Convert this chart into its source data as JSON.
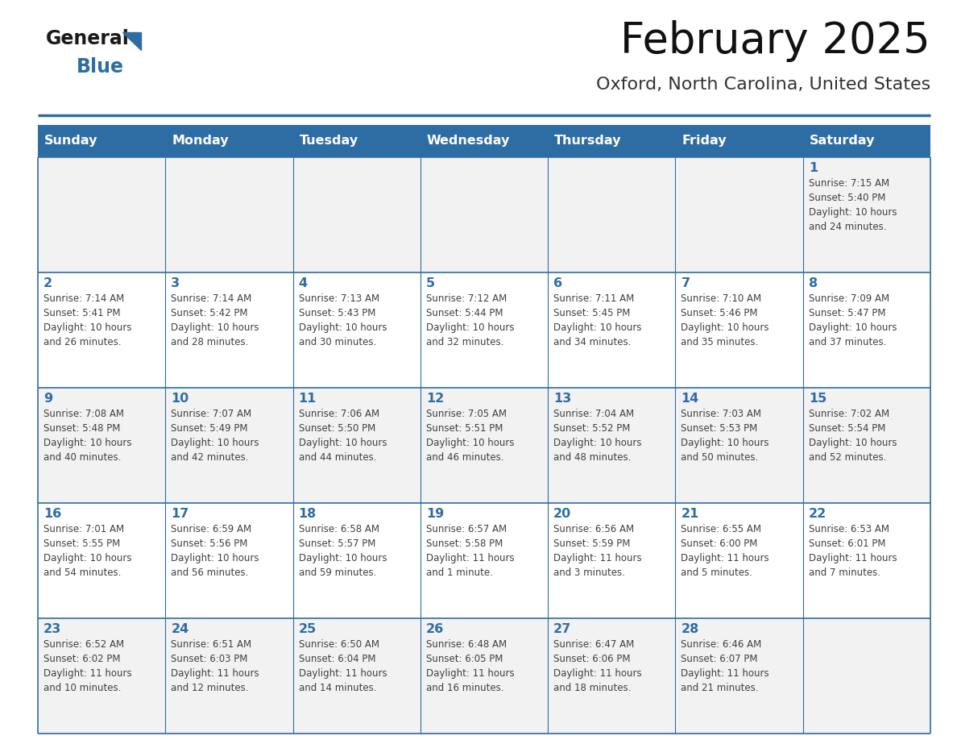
{
  "title": "February 2025",
  "subtitle": "Oxford, North Carolina, United States",
  "days_of_week": [
    "Sunday",
    "Monday",
    "Tuesday",
    "Wednesday",
    "Thursday",
    "Friday",
    "Saturday"
  ],
  "header_bg": "#2E6DA4",
  "header_text": "#FFFFFF",
  "cell_bg_even": "#F2F2F2",
  "cell_bg_odd": "#FFFFFF",
  "border_color": "#2E6DA4",
  "day_number_color": "#2E6DA4",
  "cell_text_color": "#404040",
  "logo_general_color": "#1a1a1a",
  "logo_blue_color": "#2E6DA4",
  "title_color": "#111111",
  "subtitle_color": "#333333",
  "weeks": [
    [
      {
        "day": null,
        "info": null
      },
      {
        "day": null,
        "info": null
      },
      {
        "day": null,
        "info": null
      },
      {
        "day": null,
        "info": null
      },
      {
        "day": null,
        "info": null
      },
      {
        "day": null,
        "info": null
      },
      {
        "day": 1,
        "info": "Sunrise: 7:15 AM\nSunset: 5:40 PM\nDaylight: 10 hours\nand 24 minutes."
      }
    ],
    [
      {
        "day": 2,
        "info": "Sunrise: 7:14 AM\nSunset: 5:41 PM\nDaylight: 10 hours\nand 26 minutes."
      },
      {
        "day": 3,
        "info": "Sunrise: 7:14 AM\nSunset: 5:42 PM\nDaylight: 10 hours\nand 28 minutes."
      },
      {
        "day": 4,
        "info": "Sunrise: 7:13 AM\nSunset: 5:43 PM\nDaylight: 10 hours\nand 30 minutes."
      },
      {
        "day": 5,
        "info": "Sunrise: 7:12 AM\nSunset: 5:44 PM\nDaylight: 10 hours\nand 32 minutes."
      },
      {
        "day": 6,
        "info": "Sunrise: 7:11 AM\nSunset: 5:45 PM\nDaylight: 10 hours\nand 34 minutes."
      },
      {
        "day": 7,
        "info": "Sunrise: 7:10 AM\nSunset: 5:46 PM\nDaylight: 10 hours\nand 35 minutes."
      },
      {
        "day": 8,
        "info": "Sunrise: 7:09 AM\nSunset: 5:47 PM\nDaylight: 10 hours\nand 37 minutes."
      }
    ],
    [
      {
        "day": 9,
        "info": "Sunrise: 7:08 AM\nSunset: 5:48 PM\nDaylight: 10 hours\nand 40 minutes."
      },
      {
        "day": 10,
        "info": "Sunrise: 7:07 AM\nSunset: 5:49 PM\nDaylight: 10 hours\nand 42 minutes."
      },
      {
        "day": 11,
        "info": "Sunrise: 7:06 AM\nSunset: 5:50 PM\nDaylight: 10 hours\nand 44 minutes."
      },
      {
        "day": 12,
        "info": "Sunrise: 7:05 AM\nSunset: 5:51 PM\nDaylight: 10 hours\nand 46 minutes."
      },
      {
        "day": 13,
        "info": "Sunrise: 7:04 AM\nSunset: 5:52 PM\nDaylight: 10 hours\nand 48 minutes."
      },
      {
        "day": 14,
        "info": "Sunrise: 7:03 AM\nSunset: 5:53 PM\nDaylight: 10 hours\nand 50 minutes."
      },
      {
        "day": 15,
        "info": "Sunrise: 7:02 AM\nSunset: 5:54 PM\nDaylight: 10 hours\nand 52 minutes."
      }
    ],
    [
      {
        "day": 16,
        "info": "Sunrise: 7:01 AM\nSunset: 5:55 PM\nDaylight: 10 hours\nand 54 minutes."
      },
      {
        "day": 17,
        "info": "Sunrise: 6:59 AM\nSunset: 5:56 PM\nDaylight: 10 hours\nand 56 minutes."
      },
      {
        "day": 18,
        "info": "Sunrise: 6:58 AM\nSunset: 5:57 PM\nDaylight: 10 hours\nand 59 minutes."
      },
      {
        "day": 19,
        "info": "Sunrise: 6:57 AM\nSunset: 5:58 PM\nDaylight: 11 hours\nand 1 minute."
      },
      {
        "day": 20,
        "info": "Sunrise: 6:56 AM\nSunset: 5:59 PM\nDaylight: 11 hours\nand 3 minutes."
      },
      {
        "day": 21,
        "info": "Sunrise: 6:55 AM\nSunset: 6:00 PM\nDaylight: 11 hours\nand 5 minutes."
      },
      {
        "day": 22,
        "info": "Sunrise: 6:53 AM\nSunset: 6:01 PM\nDaylight: 11 hours\nand 7 minutes."
      }
    ],
    [
      {
        "day": 23,
        "info": "Sunrise: 6:52 AM\nSunset: 6:02 PM\nDaylight: 11 hours\nand 10 minutes."
      },
      {
        "day": 24,
        "info": "Sunrise: 6:51 AM\nSunset: 6:03 PM\nDaylight: 11 hours\nand 12 minutes."
      },
      {
        "day": 25,
        "info": "Sunrise: 6:50 AM\nSunset: 6:04 PM\nDaylight: 11 hours\nand 14 minutes."
      },
      {
        "day": 26,
        "info": "Sunrise: 6:48 AM\nSunset: 6:05 PM\nDaylight: 11 hours\nand 16 minutes."
      },
      {
        "day": 27,
        "info": "Sunrise: 6:47 AM\nSunset: 6:06 PM\nDaylight: 11 hours\nand 18 minutes."
      },
      {
        "day": 28,
        "info": "Sunrise: 6:46 AM\nSunset: 6:07 PM\nDaylight: 11 hours\nand 21 minutes."
      },
      {
        "day": null,
        "info": null
      }
    ]
  ],
  "fig_width": 11.88,
  "fig_height": 9.18,
  "dpi": 100
}
